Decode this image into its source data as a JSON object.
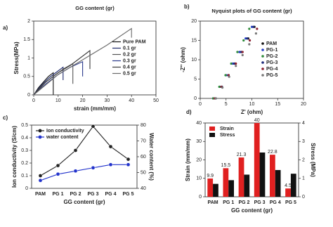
{
  "chart_data": [
    {
      "type": "line",
      "label": "a)",
      "title": "GG content (gr)",
      "xlabel": "strain (mm/mm)",
      "ylabel": "Stress(MPa)",
      "xlim": [
        0,
        50
      ],
      "xticks": [
        0,
        10,
        20,
        30,
        40,
        50
      ],
      "ylim": [
        0,
        2
      ],
      "yticks": [
        0,
        0.5,
        1,
        1.5,
        2
      ],
      "legend": "center right",
      "series": [
        {
          "name": "Pure PAM",
          "color": "#111111",
          "x": [
            0,
            2,
            4,
            6,
            8,
            8
          ],
          "values": [
            0,
            0.2,
            0.35,
            0.5,
            0.6,
            0
          ]
        },
        {
          "name": "0.1 gr",
          "color": "#1f2a6b",
          "x": [
            0,
            3,
            6,
            9,
            12,
            12
          ],
          "values": [
            0,
            0.25,
            0.45,
            0.6,
            0.75,
            0.4
          ]
        },
        {
          "name": "0.2 gr",
          "color": "#555555",
          "x": [
            0,
            4,
            8,
            12,
            16,
            16
          ],
          "values": [
            0,
            0.3,
            0.5,
            0.7,
            0.85,
            0.3
          ]
        },
        {
          "name": "0.3 gr",
          "color": "#2b3a8c",
          "x": [
            0,
            5,
            10,
            15,
            20,
            20
          ],
          "values": [
            0,
            0.3,
            0.55,
            0.75,
            0.9,
            0.5
          ]
        },
        {
          "name": "0.4 gr",
          "color": "#3a3a3a",
          "x": [
            0,
            5,
            10,
            15,
            23,
            23
          ],
          "values": [
            0,
            0.35,
            0.6,
            0.8,
            1.2,
            0.7
          ]
        },
        {
          "name": "0.5 gr",
          "color": "#6a6a6a",
          "x": [
            0,
            10,
            20,
            30,
            40,
            40
          ],
          "values": [
            0,
            0.55,
            0.95,
            1.35,
            1.8,
            1.55
          ]
        }
      ]
    },
    {
      "type": "scatter",
      "label": "b)",
      "title": "Nyquist plots of GG content (gr)",
      "xlabel": "Z' (ohm)",
      "ylabel": "-Z'' (ohm)",
      "xlim": [
        0,
        20
      ],
      "xticks": [
        0,
        5,
        10,
        15,
        20
      ],
      "ylim": [
        0,
        20
      ],
      "yticks": [
        0,
        5,
        10,
        15,
        20
      ],
      "legend": "center right",
      "series": [
        {
          "name": "PAM",
          "color": "#111111",
          "x": [
            3,
            4.2,
            5.5,
            6.8,
            8,
            9.3,
            10.5
          ],
          "values": [
            0,
            3,
            6,
            9,
            12,
            15.5,
            18.5
          ]
        },
        {
          "name": "PG-1",
          "color": "#2540c8",
          "x": [
            2.5,
            3.8,
            5,
            6.3,
            7.6,
            8.8,
            10
          ],
          "values": [
            0,
            3,
            6,
            9,
            12,
            15.5,
            18.5
          ]
        },
        {
          "name": "PG-2",
          "color": "#2e8b3a",
          "x": [
            2.5,
            3.7,
            4.9,
            6,
            7.2,
            8.4,
            9.5
          ],
          "values": [
            0,
            3,
            6,
            9,
            12,
            15,
            18
          ]
        },
        {
          "name": "PG-3",
          "color": "#1c2a7a",
          "x": [
            3,
            4.2,
            5.4,
            6.6,
            7.9,
            9.1,
            10.3
          ],
          "values": [
            0,
            3,
            6,
            9,
            12,
            15.5,
            18.5
          ]
        },
        {
          "name": "PG-4",
          "color": "#8b2030",
          "x": [
            2.8,
            4.1,
            5.5,
            6.9,
            8.2,
            9.6,
            11
          ],
          "values": [
            0,
            3,
            6,
            9,
            12,
            15,
            18
          ]
        },
        {
          "name": "PG-5",
          "color": "#777777",
          "x": [
            3,
            4.3,
            5.6,
            6.9,
            8.2,
            9.5,
            10.8
          ],
          "values": [
            0,
            2.8,
            5.6,
            8.4,
            11.2,
            14,
            16.8
          ]
        }
      ]
    },
    {
      "type": "line",
      "label": "c)",
      "xlabel": "GG content (gr)",
      "ylabel": "Ion conductivity (S/cm)",
      "y2label": "Water content (%)",
      "categories": [
        "PAM",
        "PG 1",
        "PG 2",
        "PG 3",
        "PG 4",
        "PG 5"
      ],
      "ylim": [
        0,
        0.5
      ],
      "yticks": [
        0,
        0.1,
        0.2,
        0.3,
        0.4,
        0.5
      ],
      "y2lim": [
        40,
        80
      ],
      "y2ticks": [
        40,
        50,
        60,
        70,
        80
      ],
      "legend": "upper left",
      "markers": true,
      "series": [
        {
          "name": "Ion conductivity",
          "color": "#222222",
          "values": [
            0.1,
            0.18,
            0.3,
            0.49,
            0.33,
            0.23
          ]
        },
        {
          "name": "water content",
          "color": "#2233cc",
          "axis": "y2",
          "values": [
            45,
            49,
            51,
            53,
            55,
            55
          ]
        }
      ]
    },
    {
      "type": "bar",
      "label": "d)",
      "xlabel": "GG content (gr)",
      "ylabel": "Strain (mm/mm)",
      "ylabel_color": "#c00000",
      "y2label": "Stress (MPa)",
      "categories": [
        "PAM",
        "PG 1",
        "PG 2",
        "PG 3",
        "PG 4",
        "PG 5"
      ],
      "ylim": [
        0,
        40
      ],
      "yticks": [
        0,
        10,
        20,
        30,
        40
      ],
      "y2lim": [
        0,
        4
      ],
      "y2ticks": [
        0,
        1,
        2,
        3,
        4
      ],
      "legend": "upper left",
      "series": [
        {
          "name": "Strain",
          "color": "#e02020",
          "data_labels": true,
          "values": [
            9.9,
            15.5,
            21.3,
            40,
            22.8,
            4.5
          ]
        },
        {
          "name": "Stress",
          "color": "#111111",
          "axis": "y2",
          "values": [
            0.7,
            0.9,
            1.2,
            2.4,
            1.45,
            1.25
          ]
        }
      ]
    }
  ]
}
